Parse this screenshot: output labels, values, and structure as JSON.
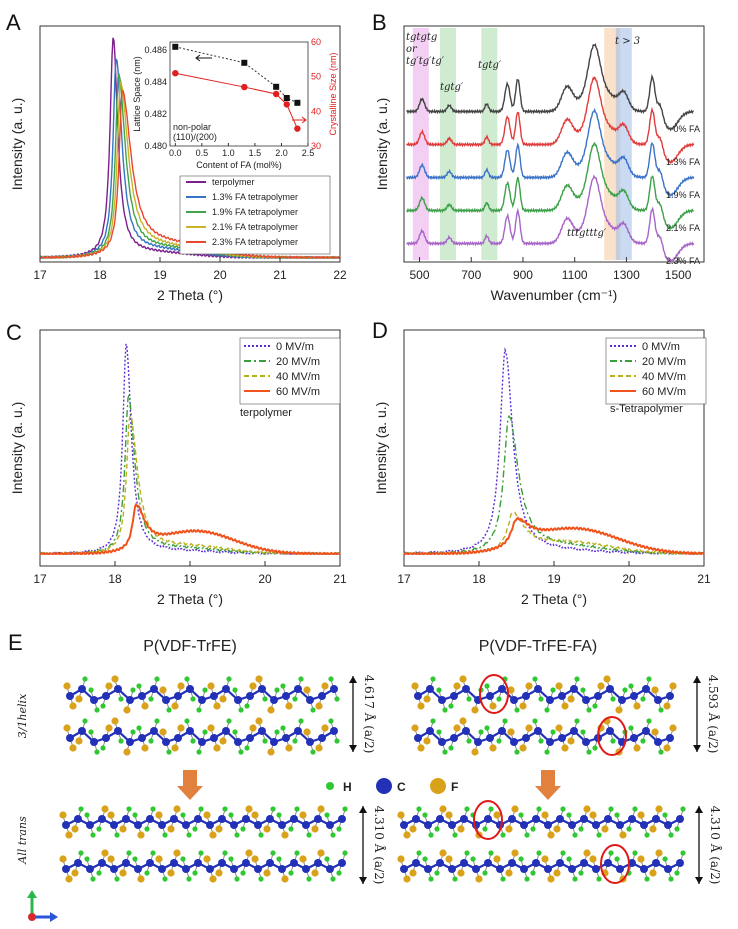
{
  "chart_data": [
    {
      "panel": "A",
      "type": "line",
      "xlabel": "2 Theta (°)",
      "ylabel": "Intensity (a. u.)",
      "xlim": [
        17,
        22
      ],
      "xticks": [
        "17",
        "18",
        "19",
        "20",
        "21",
        "22"
      ],
      "series": [
        {
          "name": "terpolymer",
          "color": "#7b1f8c",
          "peak": 18.22,
          "height": 0.97
        },
        {
          "name": "1.3% FA tetrapolymer",
          "color": "#3575c4",
          "peak": 18.27,
          "height": 0.87
        },
        {
          "name": "1.9% FA tetrapolymer",
          "color": "#41a44a",
          "peak": 18.31,
          "height": 0.8
        },
        {
          "name": "2.1% FA tetrapolymer",
          "color": "#c7b428",
          "peak": 18.34,
          "height": 0.76
        },
        {
          "name": "2.3% FA tetrapolymer",
          "color": "#e8482e",
          "peak": 18.37,
          "height": 0.72
        }
      ],
      "inset": {
        "xlabel": "Content of FA (mol%)",
        "ylabel_left": "Lattice Space (nm)",
        "ylabel_right": "Crystalline Size (nm)",
        "ylim_left": [
          0.48,
          0.4865
        ],
        "ylim_right": [
          30,
          60
        ],
        "xlim": [
          -0.1,
          2.5
        ],
        "xticks": [
          "0.0",
          "0.5",
          "1.0",
          "1.5",
          "2.0",
          "2.5"
        ],
        "yticks_left": [
          "0.480",
          "0.482",
          "0.484",
          "0.486"
        ],
        "yticks_right": [
          "30",
          "40",
          "50",
          "60"
        ],
        "annotation": "non-polar (110)/(200)",
        "x": [
          0,
          1.3,
          1.9,
          2.1,
          2.3
        ],
        "lattice_space": [
          0.4862,
          0.4852,
          0.4837,
          0.483,
          0.4827
        ],
        "crystalline_size": [
          51,
          47,
          45,
          42,
          35
        ]
      }
    },
    {
      "panel": "B",
      "type": "line",
      "xlabel": "Wavenumber (cm⁻¹)",
      "ylabel": "Intensity (a. u.)",
      "xlim": [
        440,
        1600
      ],
      "xticks": [
        "500",
        "700",
        "900",
        "1100",
        "1300",
        "1500"
      ],
      "bands": [
        {
          "label": "tgtgtg or tg′tg′tg′",
          "center": 505,
          "color": "#e9a7e9"
        },
        {
          "label": "tgtg′",
          "center": 610,
          "color": "#a9dca9"
        },
        {
          "label": "tgtg′",
          "center": 770,
          "color": "#a9dca9"
        },
        {
          "label": "",
          "center": 1245,
          "color": "#f6c89c"
        },
        {
          "label": "t > 3",
          "center": 1290,
          "color": "#9fbcea"
        }
      ],
      "extra_label": "tttgtttg′",
      "series": [
        {
          "name": "0% FA",
          "color": "#444444"
        },
        {
          "name": "1.3% FA",
          "color": "#e03c3c"
        },
        {
          "name": "1.9% FA",
          "color": "#3a73c8"
        },
        {
          "name": "2.1% FA",
          "color": "#3ea04a"
        },
        {
          "name": "2.3% FA",
          "color": "#a765c8"
        }
      ]
    },
    {
      "panel": "C",
      "type": "line",
      "xlabel": "2 Theta (°)",
      "ylabel": "Intensity (a. u.)",
      "xlim": [
        17,
        21
      ],
      "xticks": [
        "17",
        "18",
        "19",
        "20",
        "21"
      ],
      "annotation": "terpolymer",
      "series": [
        {
          "name": "0 MV/m",
          "color": "#5b2dd6",
          "dash": "2,2",
          "peak": 18.15,
          "height": 0.96
        },
        {
          "name": "20 MV/m",
          "color": "#3c9e3c",
          "dash": "7,3,2,3",
          "peak": 18.18,
          "height": 0.72
        },
        {
          "name": "40 MV/m",
          "color": "#b8b01c",
          "dash": "5,3",
          "peak": 18.2,
          "height": 0.63
        },
        {
          "name": "60 MV/m",
          "color": "#f0521c",
          "dash": "",
          "peak": 18.28,
          "height": 0.2
        }
      ]
    },
    {
      "panel": "D",
      "type": "line",
      "xlabel": "2 Theta (°)",
      "ylabel": "Intensity (a. u.)",
      "xlim": [
        17,
        21
      ],
      "xticks": [
        "17",
        "18",
        "19",
        "20",
        "21"
      ],
      "annotation": "s-Tetrapolymer",
      "series": [
        {
          "name": "0 MV/m",
          "color": "#5b2dd6",
          "dash": "2,2",
          "peak": 18.35,
          "height": 0.93
        },
        {
          "name": "20 MV/m",
          "color": "#3c9e3c",
          "dash": "7,3,2,3",
          "peak": 18.4,
          "height": 0.62
        },
        {
          "name": "40 MV/m",
          "color": "#b8b01c",
          "dash": "5,3",
          "peak": 18.45,
          "height": 0.17
        },
        {
          "name": "60 MV/m",
          "color": "#f0521c",
          "dash": "",
          "peak": 18.5,
          "height": 0.12
        }
      ]
    }
  ],
  "panels": {
    "a": "A",
    "b": "B",
    "c": "C",
    "d": "D",
    "e": "E"
  },
  "panel_e": {
    "title_left": "P(VDF-TrFE)",
    "title_right": "P(VDF-TrFE-FA)",
    "row_label_top": "3/1helix",
    "row_label_bottom": "All trans",
    "dims": {
      "tl": "4.617 Å (a/2)",
      "tr": "4.593 Å (a/2)",
      "bl": "4.310 Å (a/2)",
      "br": "4.310 Å (a/2)"
    },
    "legend": [
      {
        "label": "H",
        "color": "#2fc832"
      },
      {
        "label": "C",
        "color": "#2231b8"
      },
      {
        "label": "F",
        "color": "#d9a21a"
      }
    ]
  }
}
